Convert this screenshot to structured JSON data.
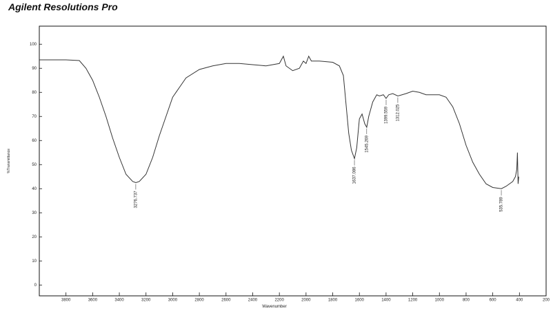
{
  "chart_data": {
    "type": "line",
    "title": "Agilent Resolutions Pro",
    "x_label": "Wavenumber",
    "y_label": "%Transmittance",
    "color": "#333333",
    "x": [
      4000,
      3800,
      3700,
      3650,
      3600,
      3550,
      3500,
      3450,
      3400,
      3350,
      3300,
      3276,
      3250,
      3200,
      3150,
      3100,
      3050,
      3000,
      2950,
      2900,
      2800,
      2700,
      2600,
      2500,
      2400,
      2300,
      2200,
      2170,
      2150,
      2100,
      2050,
      2020,
      2000,
      1980,
      1960,
      1900,
      1800,
      1750,
      1720,
      1700,
      1680,
      1660,
      1637,
      1620,
      1600,
      1580,
      1560,
      1545,
      1530,
      1500,
      1470,
      1450,
      1420,
      1400,
      1380,
      1350,
      1312,
      1280,
      1250,
      1200,
      1150,
      1100,
      1000,
      950,
      900,
      850,
      800,
      750,
      700,
      650,
      600,
      535,
      500,
      450,
      430,
      420,
      415,
      410,
      405
    ],
    "values": [
      93.5,
      93.5,
      93.2,
      90,
      85,
      78,
      70,
      61,
      53,
      46,
      43,
      42.5,
      43,
      46,
      53,
      62,
      70,
      78,
      82,
      86,
      89.5,
      91,
      92,
      92,
      91.5,
      91,
      92,
      95,
      91,
      89,
      90,
      93,
      92,
      95,
      93,
      93,
      92.5,
      91,
      87,
      75,
      63,
      56,
      52.5,
      57,
      69,
      71,
      67,
      65.5,
      70,
      76,
      79,
      78.5,
      79,
      77.5,
      79,
      79.5,
      78.5,
      79,
      79.5,
      80.5,
      80,
      79,
      79,
      78,
      74,
      67,
      58,
      51,
      46,
      42,
      40.5,
      40,
      41,
      43,
      45,
      48,
      55,
      42,
      45
    ],
    "xlim": [
      4000,
      200
    ],
    "ylim": [
      -4.5,
      107.5
    ],
    "xticks": [
      3800,
      3600,
      3400,
      3200,
      3000,
      2800,
      2600,
      2400,
      2200,
      2000,
      1800,
      1600,
      1400,
      1200,
      1000,
      800,
      600,
      400,
      200
    ],
    "yticks": [
      0,
      10,
      20,
      30,
      40,
      50,
      60,
      70,
      80,
      90,
      100
    ],
    "annotations": [
      {
        "label": "3276.737",
        "x": 3276.737
      },
      {
        "label": "1637.086",
        "x": 1637.086
      },
      {
        "label": "1545.269",
        "x": 1545.269
      },
      {
        "label": "1399.559",
        "x": 1399.559
      },
      {
        "label": "1312.025",
        "x": 1312.025
      },
      {
        "label": "535.789",
        "x": 535.789
      }
    ]
  }
}
